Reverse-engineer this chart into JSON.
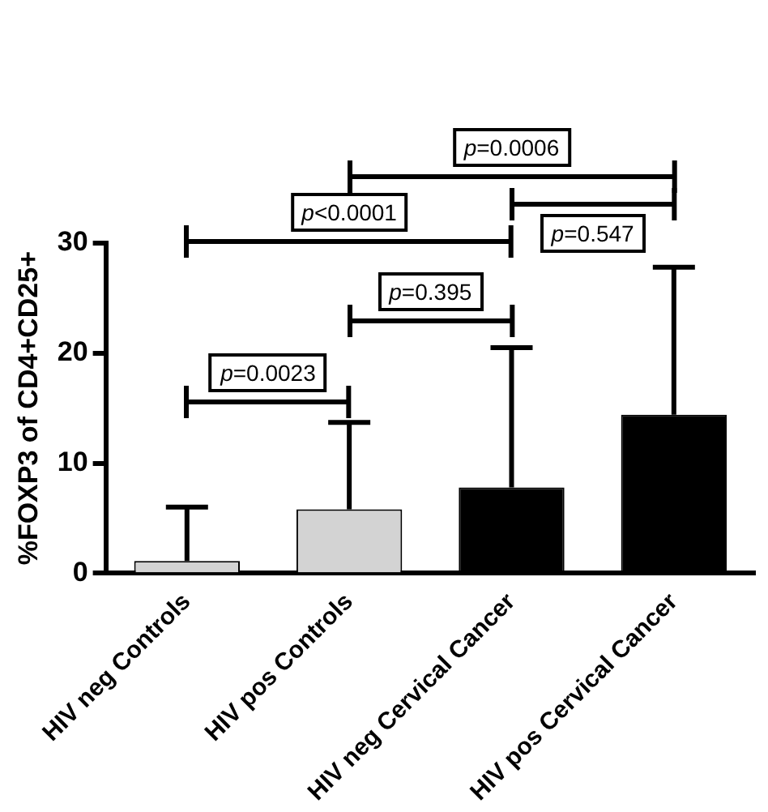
{
  "chart_data": {
    "type": "bar",
    "ylabel": "%FOXP3 of CD4+CD25+",
    "categories": [
      "HIV neg Controls",
      "HIV pos Controls",
      "HIV neg Cervical Cancer",
      "HIV pos Cervical Cancer"
    ],
    "values": [
      1.1,
      5.8,
      7.8,
      14.4
    ],
    "colors": [
      "#d3d3d3",
      "#d3d3d3",
      "#000000",
      "#000000"
    ],
    "errors": [
      [
        1.1,
        6.0
      ],
      [
        5.8,
        13.7
      ],
      [
        7.8,
        20.5
      ],
      [
        14.4,
        27.8
      ]
    ],
    "ylim": [
      0,
      30
    ],
    "yticks": [
      0,
      10,
      20,
      30
    ],
    "grid": false,
    "legend": false,
    "annotations": [
      "p=0.0006",
      "p<0.0001",
      "p=0.547",
      "p=0.395",
      "p=0.0023"
    ]
  }
}
